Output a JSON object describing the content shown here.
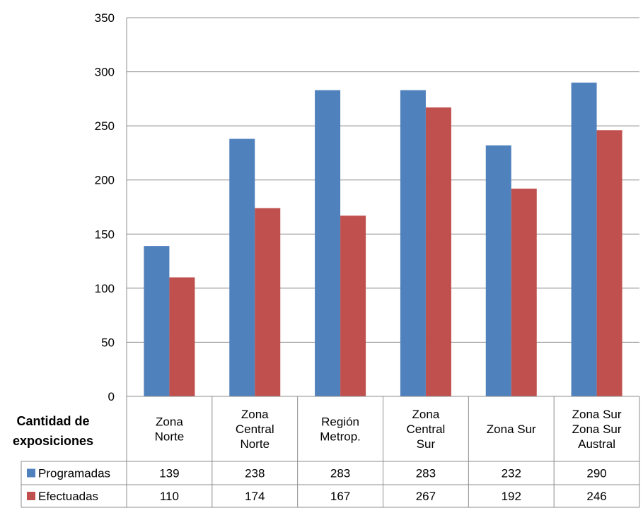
{
  "chart_data": {
    "type": "bar",
    "table_title_lines": [
      "Cantidad de",
      "exposiciones"
    ],
    "categories": [
      [
        "Zona",
        "Norte"
      ],
      [
        "Zona",
        "Central",
        "Norte"
      ],
      [
        "Región",
        "Metrop."
      ],
      [
        "Zona",
        "Central",
        "Sur"
      ],
      [
        "Zona Sur"
      ],
      [
        "Zona Sur",
        "Zona Sur",
        "Austral"
      ]
    ],
    "series": [
      {
        "name": "Programadas",
        "color": "#4F81BD",
        "values": [
          139,
          238,
          283,
          283,
          232,
          290
        ]
      },
      {
        "name": "Efectuadas",
        "color": "#C0504D",
        "values": [
          110,
          174,
          167,
          267,
          192,
          246
        ]
      }
    ],
    "ylim": [
      0,
      350
    ],
    "yticks": [
      0,
      50,
      100,
      150,
      200,
      250,
      300,
      350
    ],
    "grid": true,
    "legend": "data-table"
  }
}
